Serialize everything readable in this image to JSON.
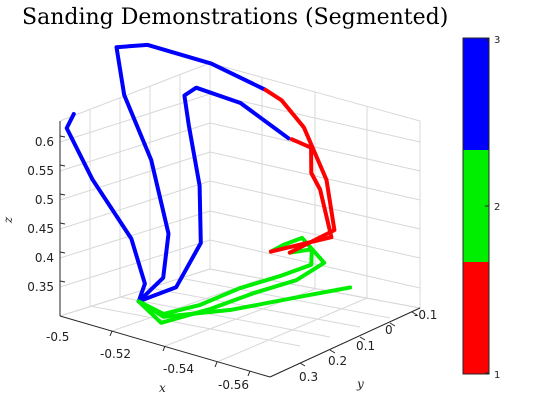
{
  "chart_data": {
    "type": "line3d",
    "title": "Sanding Demonstrations (Segmented)",
    "xlabel": "x",
    "ylabel": "y",
    "zlabel": "z",
    "xlim": [
      -0.5,
      -0.565
    ],
    "ylim": [
      -0.15,
      0.35
    ],
    "zlim": [
      0.3,
      0.64
    ],
    "x_ticks": [
      "-0.5",
      "-0.52",
      "-0.54",
      "-0.56"
    ],
    "y_ticks": [
      "-0.1",
      "0",
      "0.1",
      "0.2",
      "0.3"
    ],
    "z_ticks": [
      "0.35",
      "0.4",
      "0.45",
      "0.5",
      "0.55",
      "0.6"
    ],
    "grid": true,
    "colorbar": {
      "ticks": [
        "1",
        "2",
        "3"
      ],
      "segments": [
        {
          "label": "1",
          "color": "#ff0000"
        },
        {
          "label": "2",
          "color": "#00ee00"
        },
        {
          "label": "3",
          "color": "#0000ff"
        }
      ]
    },
    "series": [
      {
        "segments": [
          {
            "phase": 3,
            "color": "#0000ff",
            "points": [
              [
                -0.528,
                -0.11,
                0.545
              ],
              [
                -0.515,
                -0.09,
                0.59
              ],
              [
                -0.505,
                -0.05,
                0.61
              ],
              [
                -0.506,
                0.0,
                0.61
              ],
              [
                -0.512,
                0.05,
                0.58
              ],
              [
                -0.52,
                0.1,
                0.5
              ],
              [
                -0.525,
                0.15,
                0.42
              ],
              [
                -0.522,
                0.2,
                0.35
              ],
              [
                -0.516,
                0.26,
                0.33
              ]
            ]
          },
          {
            "phase": 2,
            "color": "#00ee00",
            "points": [
              [
                -0.516,
                0.26,
                0.33
              ],
              [
                -0.522,
                0.25,
                0.3
              ],
              [
                -0.528,
                0.15,
                0.31
              ],
              [
                -0.532,
                0.05,
                0.32
              ],
              [
                -0.536,
                -0.05,
                0.325
              ],
              [
                -0.54,
                -0.1,
                0.35
              ],
              [
                -0.535,
                -0.08,
                0.39
              ],
              [
                -0.532,
                -0.05,
                0.38
              ],
              [
                -0.53,
                -0.03,
                0.37
              ]
            ]
          },
          {
            "phase": 1,
            "color": "#ff0000",
            "points": [
              [
                -0.53,
                -0.03,
                0.37
              ],
              [
                -0.545,
                -0.07,
                0.41
              ],
              [
                -0.535,
                -0.14,
                0.46
              ],
              [
                -0.536,
                -0.1,
                0.5
              ],
              [
                -0.535,
                -0.11,
                0.54
              ],
              [
                -0.529,
                -0.11,
                0.545
              ]
            ]
          }
        ]
      },
      {
        "segments": [
          {
            "phase": 3,
            "color": "#0000ff",
            "points": [
              [
                -0.519,
                -0.13,
                0.61
              ],
              [
                -0.505,
                -0.1,
                0.64
              ],
              [
                -0.49,
                -0.05,
                0.66
              ],
              [
                -0.485,
                0.0,
                0.66
              ],
              [
                -0.492,
                0.05,
                0.6
              ],
              [
                -0.505,
                0.1,
                0.52
              ],
              [
                -0.515,
                0.15,
                0.42
              ],
              [
                -0.518,
                0.2,
                0.36
              ],
              [
                -0.516,
                0.26,
                0.33
              ]
            ]
          },
          {
            "phase": 2,
            "color": "#00ee00",
            "points": [
              [
                -0.516,
                0.26,
                0.33
              ],
              [
                -0.52,
                0.22,
                0.305
              ],
              [
                -0.522,
                0.12,
                0.3
              ],
              [
                -0.525,
                0.02,
                0.31
              ],
              [
                -0.53,
                -0.06,
                0.32
              ],
              [
                -0.536,
                -0.1,
                0.34
              ],
              [
                -0.538,
                -0.08,
                0.375
              ],
              [
                -0.534,
                -0.05,
                0.37
              ]
            ]
          },
          {
            "phase": 1,
            "color": "#ff0000",
            "points": [
              [
                -0.534,
                -0.05,
                0.37
              ],
              [
                -0.545,
                -0.08,
                0.42
              ],
              [
                -0.537,
                -0.14,
                0.48
              ],
              [
                -0.53,
                -0.14,
                0.56
              ],
              [
                -0.524,
                -0.13,
                0.6
              ],
              [
                -0.519,
                -0.13,
                0.61
              ]
            ]
          }
        ]
      },
      {
        "segments": [
          {
            "phase": 3,
            "color": "#0000ff",
            "points": [
              [
                -0.495,
                0.25,
                0.62
              ],
              [
                -0.49,
                0.22,
                0.58
              ],
              [
                -0.497,
                0.21,
                0.5
              ],
              [
                -0.51,
                0.22,
                0.42
              ],
              [
                -0.517,
                0.25,
                0.36
              ],
              [
                -0.516,
                0.26,
                0.33
              ]
            ]
          },
          {
            "phase": 2,
            "color": "#00ee00",
            "points": [
              [
                -0.516,
                0.26,
                0.33
              ],
              [
                -0.52,
                0.22,
                0.3
              ],
              [
                -0.53,
                0.1,
                0.3
              ],
              [
                -0.54,
                -0.02,
                0.31
              ],
              [
                -0.548,
                -0.1,
                0.32
              ]
            ]
          }
        ]
      }
    ]
  }
}
